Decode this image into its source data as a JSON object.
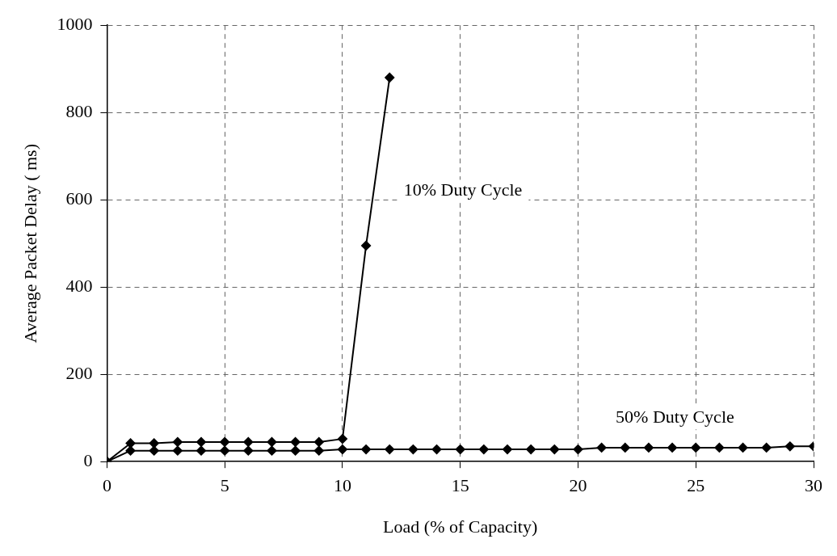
{
  "chart_data": {
    "type": "line",
    "xlabel": "Load (% of Capacity)",
    "ylabel": "Average Packet Delay ( ms)",
    "xlim": [
      0,
      30
    ],
    "xticks": [
      0,
      5,
      10,
      15,
      20,
      25,
      30
    ],
    "ylim": [
      0,
      1000
    ],
    "yticks": [
      0,
      200,
      400,
      600,
      800,
      1000
    ],
    "grid": true,
    "legend": false,
    "marker": "diamond",
    "line_style": "solid",
    "series": [
      {
        "name": "10% Duty Cycle",
        "color": "#000000",
        "x": [
          0,
          1,
          2,
          3,
          4,
          5,
          6,
          7,
          8,
          9,
          10,
          11,
          12
        ],
        "values": [
          0,
          42,
          42,
          45,
          45,
          45,
          45,
          45,
          45,
          45,
          52,
          495,
          880
        ]
      },
      {
        "name": "50% Duty Cycle",
        "color": "#000000",
        "x": [
          0,
          1,
          2,
          3,
          4,
          5,
          6,
          7,
          8,
          9,
          10,
          11,
          12,
          13,
          14,
          15,
          16,
          17,
          18,
          19,
          20,
          21,
          22,
          23,
          24,
          25,
          26,
          27,
          28,
          29,
          30
        ],
        "values": [
          0,
          25,
          25,
          25,
          25,
          25,
          25,
          25,
          25,
          25,
          28,
          28,
          28,
          28,
          28,
          28,
          28,
          28,
          28,
          28,
          28,
          32,
          32,
          32,
          32,
          32,
          32,
          32,
          32,
          35,
          35
        ]
      }
    ]
  }
}
